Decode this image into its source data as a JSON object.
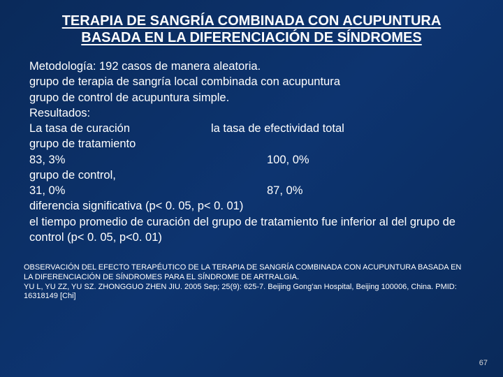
{
  "title": "TERAPIA DE SANGRÍA COMBINADA CON ACUPUNTURA BASADA EN LA DIFERENCIACIÓN DE SÍNDROMES",
  "body": {
    "l1": "Metodología: 192 casos de manera aleatoria.",
    "l2": "grupo de terapia de sangría local combinada con acupuntura",
    "l3": "grupo de control de acupuntura simple.",
    "l4": "Resultados:",
    "l5a": "La tasa de curación",
    "l5b": "la tasa de efectividad total",
    "l6": "grupo de tratamiento",
    "l7a": "83, 3%",
    "l7b": "100, 0%",
    "l8": "grupo de control,",
    "l9a": "31, 0%",
    "l9b": "87, 0%",
    "l10": "diferencia significativa  (p< 0. 05, p< 0. 01)",
    "l11": "el tiempo promedio de curación del grupo de tratamiento fue inferior al del grupo de control (p< 0. 05, p<0. 01)"
  },
  "citation": {
    "c1": "OBSERVACIÓN DEL EFECTO TERAPÉUTICO DE LA TERAPIA DE SANGRÍA COMBINADA CON ACUPUNTURA BASADA EN LA DIFERENCIACIÓN DE SÍNDROMES PARA EL SÍNDROME DE ARTRALGIA.",
    "c2": "YU L, YU ZZ, YU SZ. ZHONGGUO ZHEN JIU. 2005 Sep; 25(9): 625-7. Beijing Gong'an Hospital, Beijing 100006, China. PMID: 16318149 [Chi]"
  },
  "page": "67"
}
